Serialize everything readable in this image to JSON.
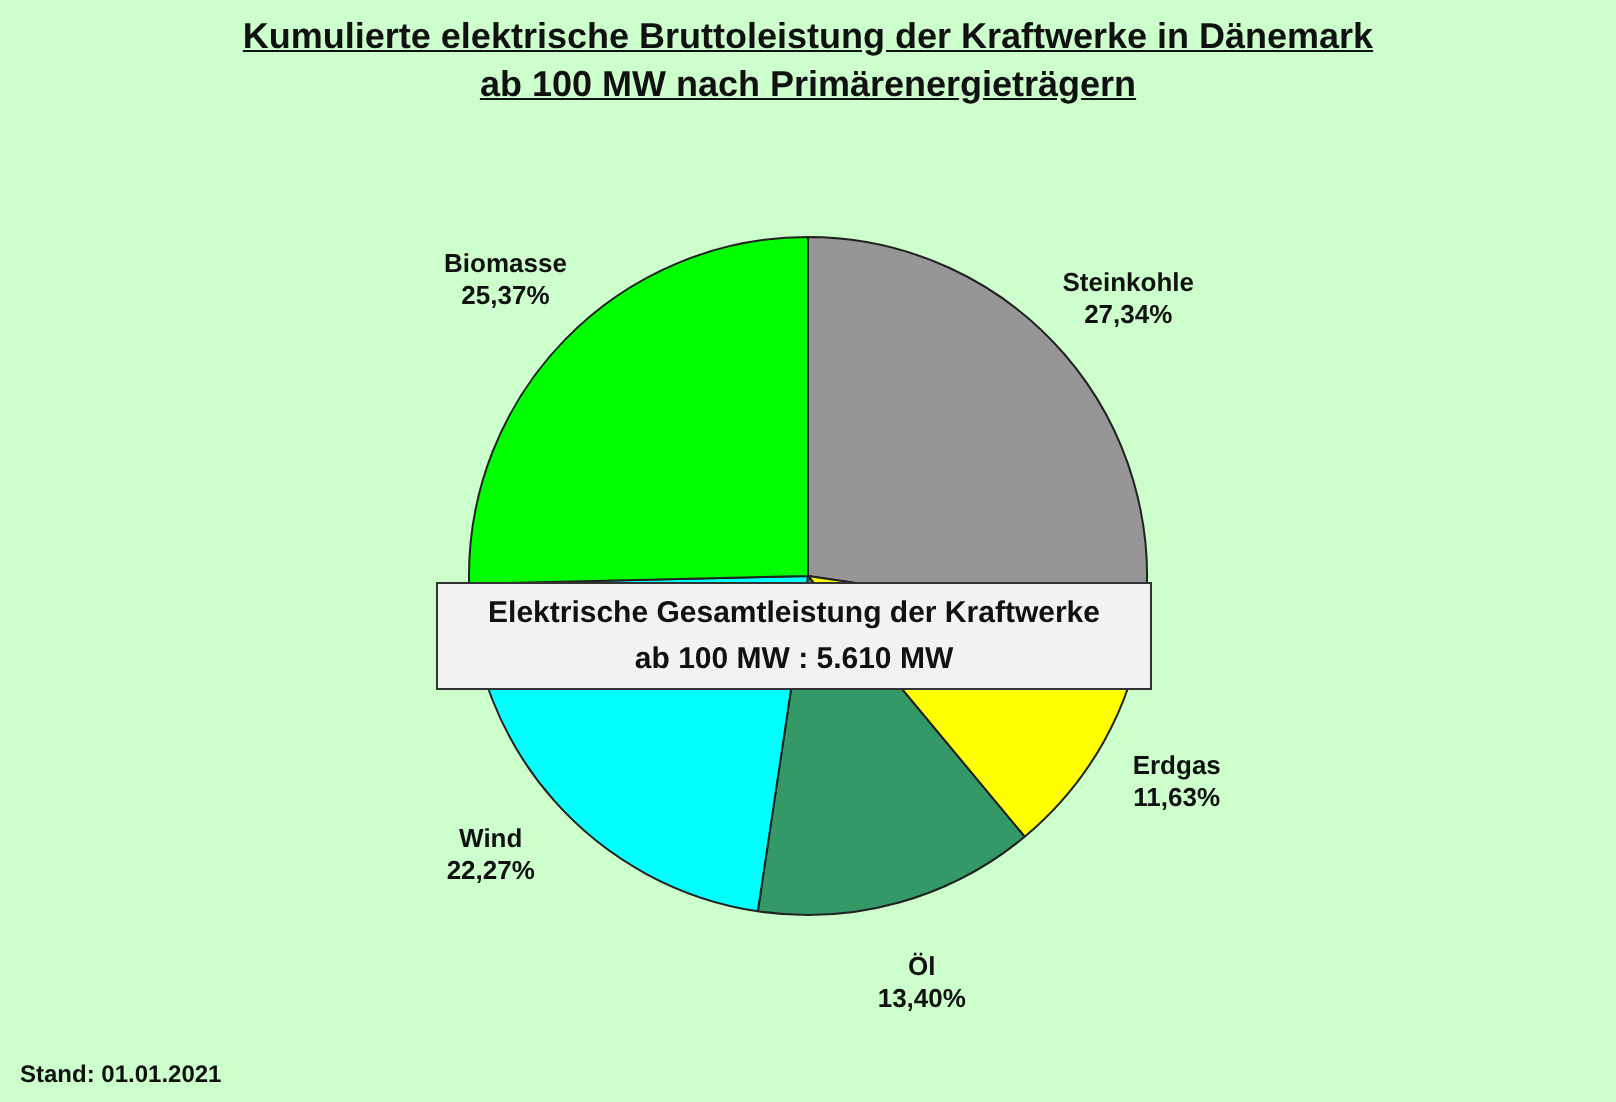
{
  "chart_data": {
    "type": "pie",
    "title": "Kumulierte elektrische Bruttoleistung der Kraftwerke in Dänemark ab 100 MW nach Primärenergieträgern",
    "categories": [
      "Steinkohle",
      "Erdgas",
      "Öl",
      "Wind",
      "Biomasse"
    ],
    "values": [
      27.34,
      11.63,
      13.4,
      22.27,
      25.37
    ],
    "value_labels": [
      "27,34%",
      "11,63%",
      "13,40%",
      "22,27%",
      "25,37%"
    ],
    "colors": [
      "#969696",
      "#ffff00",
      "#339966",
      "#00ffff",
      "#00ff00"
    ],
    "annotations": [
      "Elektrische Gesamtleistung der Kraftwerke ab 100 MW : 5.610 MW",
      "Stand: 01.01.2021"
    ]
  }
}
